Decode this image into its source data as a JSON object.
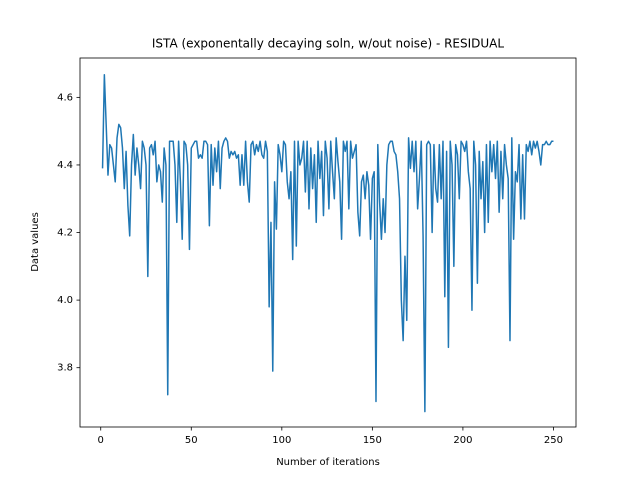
{
  "chart_data": {
    "type": "line",
    "title": "ISTA (exponentally decaying soln, w/out noise) - RESIDUAL",
    "x_label": "Number of iterations",
    "y_label": "Data values",
    "color": "#1f77b4",
    "grid": false,
    "xlim": [
      -11.45,
      262.45
    ],
    "ylim": [
      3.6245,
      4.7165
    ],
    "xticks": [
      0,
      50,
      100,
      150,
      200,
      250
    ],
    "yticks": [
      3.8,
      {
        "value": 4,
        "label": "4.0"
      },
      4.2,
      4.4,
      4.6
    ],
    "x": [
      1,
      2,
      3,
      4,
      5,
      6,
      7,
      8,
      9,
      10,
      11,
      12,
      13,
      14,
      15,
      16,
      17,
      18,
      19,
      20,
      21,
      22,
      23,
      24,
      25,
      26,
      27,
      28,
      29,
      30,
      31,
      32,
      33,
      34,
      35,
      36,
      37,
      38,
      39,
      40,
      41,
      42,
      43,
      44,
      45,
      46,
      47,
      48,
      49,
      50,
      51,
      52,
      53,
      54,
      55,
      56,
      57,
      58,
      59,
      60,
      61,
      62,
      63,
      64,
      65,
      66,
      67,
      68,
      69,
      70,
      71,
      72,
      73,
      74,
      75,
      76,
      77,
      78,
      79,
      80,
      81,
      82,
      83,
      84,
      85,
      86,
      87,
      88,
      89,
      90,
      91,
      92,
      93,
      94,
      95,
      96,
      97,
      98,
      99,
      100,
      101,
      102,
      103,
      104,
      105,
      106,
      107,
      108,
      109,
      110,
      111,
      112,
      113,
      114,
      115,
      116,
      117,
      118,
      119,
      120,
      121,
      122,
      123,
      124,
      125,
      126,
      127,
      128,
      129,
      130,
      131,
      132,
      133,
      134,
      135,
      136,
      137,
      138,
      139,
      140,
      141,
      142,
      143,
      144,
      145,
      146,
      147,
      148,
      149,
      150,
      151,
      152,
      153,
      154,
      155,
      156,
      157,
      158,
      159,
      160,
      161,
      162,
      163,
      164,
      165,
      166,
      167,
      168,
      169,
      170,
      171,
      172,
      173,
      174,
      175,
      176,
      177,
      178,
      179,
      180,
      181,
      182,
      183,
      184,
      185,
      186,
      187,
      188,
      189,
      190,
      191,
      192,
      193,
      194,
      195,
      196,
      197,
      198,
      199,
      200,
      201,
      202,
      203,
      204,
      205,
      206,
      207,
      208,
      209,
      210,
      211,
      212,
      213,
      214,
      215,
      216,
      217,
      218,
      219,
      220,
      221,
      222,
      223,
      224,
      225,
      226,
      227,
      228,
      229,
      230,
      231,
      232,
      233,
      234,
      235,
      236,
      237,
      238,
      239,
      240,
      241,
      242,
      243,
      244,
      245,
      246,
      247,
      248,
      249,
      250
    ],
    "values": [
      4.39,
      4.667,
      4.52,
      4.37,
      4.46,
      4.45,
      4.4,
      4.35,
      4.48,
      4.52,
      4.51,
      4.45,
      4.33,
      4.44,
      4.28,
      4.19,
      4.4,
      4.49,
      4.37,
      4.45,
      4.4,
      4.33,
      4.47,
      4.45,
      4.4,
      4.07,
      4.45,
      4.46,
      4.43,
      4.47,
      4.35,
      4.4,
      4.38,
      4.29,
      4.45,
      4.4,
      3.72,
      4.47,
      4.47,
      4.47,
      4.4,
      4.23,
      4.47,
      4.35,
      4.18,
      4.47,
      4.46,
      4.4,
      4.15,
      4.45,
      4.46,
      4.47,
      4.47,
      4.42,
      4.43,
      4.42,
      4.47,
      4.47,
      4.46,
      4.22,
      4.46,
      4.34,
      4.45,
      4.38,
      4.47,
      4.33,
      4.45,
      4.47,
      4.48,
      4.47,
      4.42,
      4.44,
      4.43,
      4.44,
      4.42,
      4.43,
      4.34,
      4.43,
      4.34,
      4.47,
      4.35,
      4.29,
      4.46,
      4.47,
      4.43,
      4.46,
      4.44,
      4.47,
      4.43,
      4.42,
      4.47,
      4.44,
      3.98,
      4.23,
      3.79,
      4.35,
      4.21,
      4.46,
      4.43,
      4.38,
      4.47,
      4.46,
      4.35,
      4.3,
      4.38,
      4.12,
      4.47,
      4.16,
      4.47,
      4.4,
      4.42,
      4.47,
      4.32,
      4.47,
      4.27,
      4.45,
      4.33,
      4.43,
      4.23,
      4.47,
      4.36,
      4.44,
      4.25,
      4.47,
      4.42,
      4.27,
      4.47,
      4.38,
      4.3,
      4.48,
      4.41,
      4.35,
      4.18,
      4.47,
      4.44,
      4.47,
      4.27,
      4.47,
      4.42,
      4.44,
      4.46,
      4.26,
      4.19,
      4.35,
      4.37,
      4.3,
      4.38,
      4.34,
      4.18,
      4.36,
      4.38,
      3.7,
      4.46,
      4.29,
      4.18,
      4.3,
      4.2,
      4.4,
      4.46,
      4.47,
      4.47,
      4.44,
      4.43,
      4.38,
      4.3,
      4.0,
      3.88,
      4.13,
      3.94,
      4.48,
      4.39,
      4.47,
      4.38,
      4.47,
      4.27,
      4.36,
      4.47,
      4.19,
      3.67,
      4.46,
      4.47,
      4.46,
      4.2,
      4.46,
      4.33,
      4.29,
      4.46,
      4.3,
      4.47,
      4.01,
      4.44,
      3.86,
      4.47,
      4.4,
      4.1,
      4.46,
      4.43,
      4.3,
      4.47,
      4.46,
      4.44,
      4.47,
      4.38,
      4.33,
      3.97,
      4.47,
      4.4,
      4.05,
      4.44,
      4.3,
      4.41,
      4.2,
      4.46,
      4.23,
      4.47,
      4.38,
      4.46,
      4.36,
      4.47,
      4.26,
      4.44,
      4.3,
      4.46,
      4.4,
      4.36,
      3.88,
      4.48,
      4.18,
      4.38,
      4.35,
      4.46,
      4.24,
      4.43,
      4.24,
      4.46,
      4.44,
      4.47,
      4.43,
      4.47,
      4.45,
      4.47,
      4.44,
      4.4,
      4.46,
      4.46,
      4.47,
      4.46,
      4.46,
      4.47,
      4.47
    ]
  }
}
